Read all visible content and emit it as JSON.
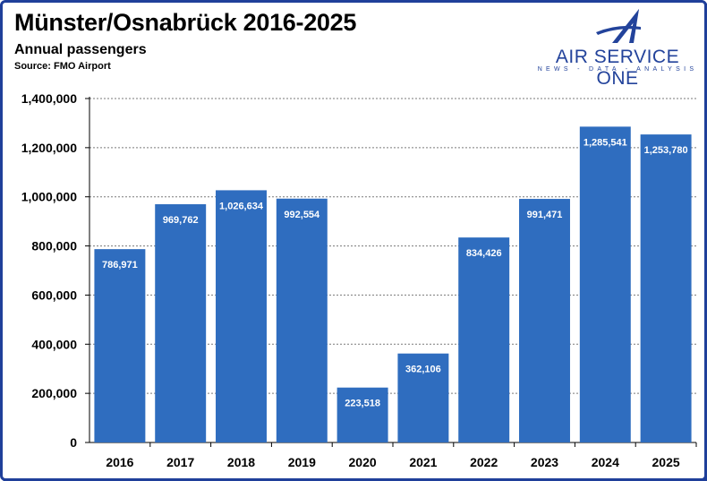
{
  "header": {
    "title": "Münster/Osnabrück 2016-2025",
    "subtitle": "Annual passengers",
    "source": "Source: FMO Airport"
  },
  "logo": {
    "name": "AIR SERVICE ONE",
    "tagline": "NEWS - DATA - ANALYSIS",
    "icon": "stylized-a-plane-icon",
    "color": "#23439b"
  },
  "colors": {
    "bar": "#2f6dbf",
    "frame": "#1f3f9a"
  },
  "chart_data": {
    "type": "bar",
    "title": "Münster/Osnabrück 2016-2025",
    "subtitle": "Annual passengers",
    "categories": [
      "2016",
      "2017",
      "2018",
      "2019",
      "2020",
      "2021",
      "2022",
      "2023",
      "2024",
      "2025"
    ],
    "values": [
      786971,
      969762,
      1026634,
      992554,
      223518,
      362106,
      834426,
      991471,
      1285541,
      1253780
    ],
    "value_labels": [
      "786,971",
      "969,762",
      "1,026,634",
      "992,554",
      "223,518",
      "362,106",
      "834,426",
      "991,471",
      "1,285,541",
      "1,253,780"
    ],
    "ylim": [
      0,
      1400000
    ],
    "yticks": [
      0,
      200000,
      400000,
      600000,
      800000,
      1000000,
      1200000,
      1400000
    ],
    "ytick_labels": [
      "0",
      "200,000",
      "400,000",
      "600,000",
      "800,000",
      "1,000,000",
      "1,200,000",
      "1,400,000"
    ],
    "xlabel": "",
    "ylabel": "",
    "grid": true,
    "grid_style": "dashed",
    "legend": "none"
  }
}
